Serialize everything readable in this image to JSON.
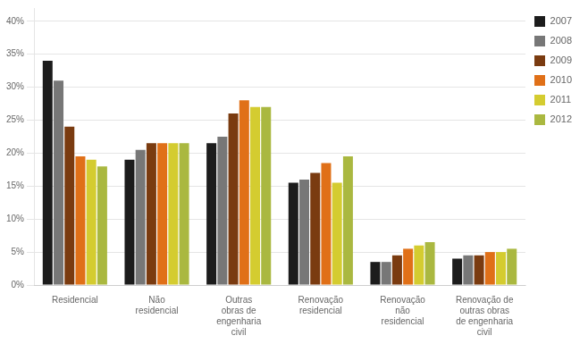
{
  "chart_data": {
    "type": "bar",
    "categories": [
      "Residencial",
      "Não\nresidencial",
      "Outras\nobras de\nengenharia\ncivil",
      "Renovação\nresidencial",
      "Renovação\nnão\nresidencial",
      "Renovação de\noutras obras\nde engenharia\ncivil"
    ],
    "series": [
      {
        "name": "2007",
        "color": "#1c1c1c",
        "values": [
          34.0,
          19.0,
          21.5,
          15.5,
          3.5,
          4.0
        ]
      },
      {
        "name": "2008",
        "color": "#777777",
        "values": [
          31.0,
          20.5,
          22.5,
          16.0,
          3.5,
          4.5
        ]
      },
      {
        "name": "2009",
        "color": "#7a3b10",
        "values": [
          24.0,
          21.5,
          26.0,
          17.0,
          4.5,
          4.5
        ]
      },
      {
        "name": "2010",
        "color": "#e07018",
        "values": [
          19.5,
          21.5,
          28.0,
          18.5,
          5.5,
          5.0
        ]
      },
      {
        "name": "2011",
        "color": "#d4cc30",
        "values": [
          19.0,
          21.5,
          27.0,
          15.5,
          6.0,
          5.0
        ]
      },
      {
        "name": "2012",
        "color": "#aab840",
        "values": [
          18.0,
          21.5,
          27.0,
          19.5,
          6.5,
          5.5
        ]
      }
    ],
    "ylim": [
      0,
      42
    ],
    "yticks": [
      {
        "value": 0,
        "label": "0%"
      },
      {
        "value": 5,
        "label": "5%"
      },
      {
        "value": 10,
        "label": "10%"
      },
      {
        "value": 15,
        "label": "15%"
      },
      {
        "value": 20,
        "label": "20%"
      },
      {
        "value": 25,
        "label": "25%"
      },
      {
        "value": 30,
        "label": "30%"
      },
      {
        "value": 35,
        "label": "35%"
      },
      {
        "value": 40,
        "label": "40%"
      }
    ],
    "grid": true,
    "legend": "right"
  }
}
